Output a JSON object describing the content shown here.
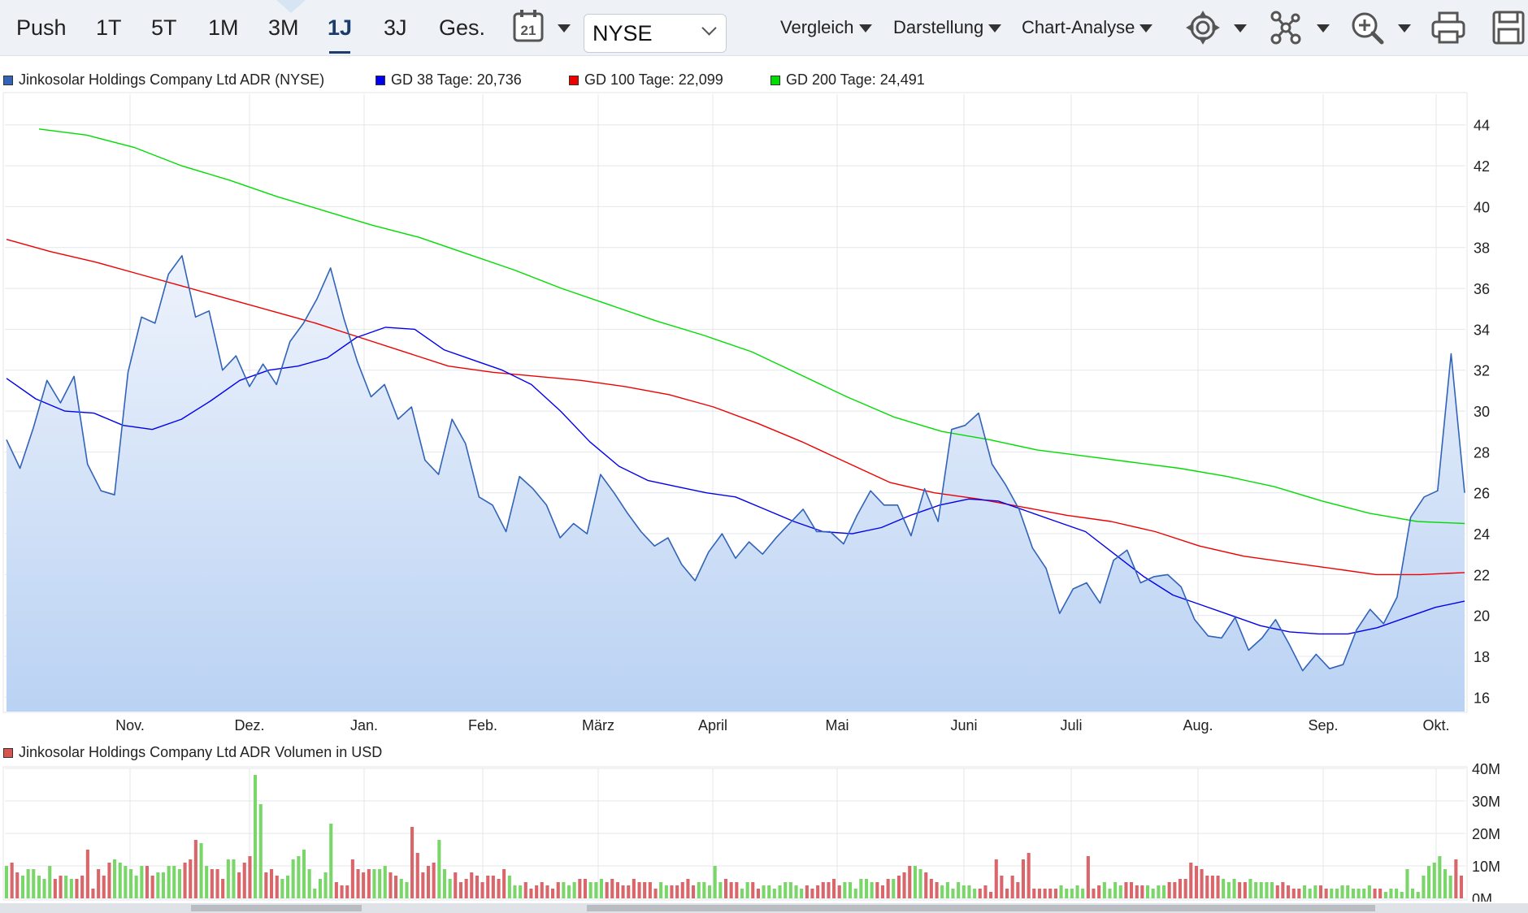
{
  "toolbar": {
    "timeframes": [
      "Push",
      "1T",
      "5T",
      "1M",
      "3M",
      "1J",
      "3J",
      "Ges."
    ],
    "active_timeframe": "1J",
    "calendar_day": "21",
    "exchange": "NYSE",
    "menus": [
      "Vergleich",
      "Darstellung",
      "Chart-Analyse"
    ],
    "icons": [
      "settings-icon",
      "network-icon",
      "zoom-icon",
      "print-icon",
      "save-icon"
    ]
  },
  "legend_price": [
    {
      "label": "Jinkosolar Holdings Company Ltd ADR (NYSE)",
      "color": "#3163b8"
    },
    {
      "label": "GD 38 Tage: 20,736",
      "color": "#0000ee"
    },
    {
      "label": "GD 100 Tage: 22,099",
      "color": "#ee0000"
    },
    {
      "label": "GD 200 Tage: 24,491",
      "color": "#00dd00"
    }
  ],
  "legend_volume": {
    "label": "Jinkosolar Holdings Company Ltd ADR Volumen in USD",
    "color": "#d9534f"
  },
  "chart_data": [
    {
      "type": "line",
      "title": "",
      "x_axis_labels": [
        "Nov.",
        "Dez.",
        "Jan.",
        "Feb.",
        "März",
        "April",
        "Mai",
        "Juni",
        "Juli",
        "Aug.",
        "Sep.",
        "Okt."
      ],
      "y_ticks": [
        16,
        18,
        20,
        22,
        24,
        26,
        28,
        30,
        32,
        34,
        36,
        38,
        40,
        42,
        44
      ],
      "ylim": [
        15.3,
        45.5
      ],
      "grid": true,
      "series": [
        {
          "name": "Jinkosolar Holdings Company Ltd ADR (NYSE)",
          "color": "#3163b8",
          "style": "area",
          "values": [
            28.6,
            27.2,
            29.2,
            31.5,
            30.4,
            31.7,
            27.4,
            26.1,
            25.9,
            31.9,
            34.6,
            34.3,
            36.7,
            37.6,
            34.6,
            34.9,
            32.0,
            32.7,
            31.2,
            32.3,
            31.3,
            33.4,
            34.3,
            35.5,
            37.0,
            34.5,
            32.4,
            30.7,
            31.3,
            29.6,
            30.2,
            27.6,
            26.9,
            29.6,
            28.4,
            25.8,
            25.4,
            24.1,
            26.8,
            26.2,
            25.4,
            23.8,
            24.5,
            24.0,
            26.9,
            26.0,
            25.0,
            24.1,
            23.4,
            23.8,
            22.5,
            21.7,
            23.1,
            24.0,
            22.8,
            23.6,
            23.0,
            23.8,
            24.5,
            25.2,
            24.1,
            24.1,
            23.5,
            24.9,
            26.1,
            25.4,
            25.4,
            23.9,
            26.2,
            24.6,
            29.1,
            29.3,
            29.9,
            27.4,
            26.4,
            25.2,
            23.3,
            22.3,
            20.1,
            21.3,
            21.6,
            20.6,
            22.7,
            23.2,
            21.6,
            21.9,
            22.0,
            21.4,
            19.8,
            19.0,
            18.9,
            19.9,
            18.3,
            18.9,
            19.8,
            18.6,
            17.3,
            18.1,
            17.4,
            17.6,
            19.3,
            20.3,
            19.6,
            20.9,
            24.8,
            25.8,
            26.1,
            32.8,
            26.0
          ]
        },
        {
          "name": "GD 38 Tage: 20,736",
          "color": "#0000ee",
          "style": "line",
          "values": [
            31.6,
            30.6,
            30.0,
            29.9,
            29.3,
            29.1,
            29.6,
            30.5,
            31.5,
            32.0,
            32.2,
            32.6,
            33.6,
            34.1,
            34.0,
            33.0,
            32.5,
            32.0,
            31.3,
            30.0,
            28.5,
            27.3,
            26.6,
            26.3,
            26.0,
            25.8,
            25.2,
            24.6,
            24.1,
            24.0,
            24.3,
            24.9,
            25.4,
            25.7,
            25.6,
            25.1,
            24.6,
            24.1,
            23.0,
            21.9,
            21.0,
            20.5,
            20.0,
            19.5,
            19.2,
            19.1,
            19.1,
            19.4,
            19.9,
            20.4,
            20.7
          ]
        },
        {
          "name": "GD 100 Tage: 22,099",
          "color": "#ee0000",
          "style": "line",
          "values": [
            38.4,
            37.8,
            37.3,
            36.7,
            36.1,
            35.5,
            34.9,
            34.3,
            33.6,
            32.9,
            32.2,
            31.9,
            31.7,
            31.5,
            31.2,
            30.8,
            30.2,
            29.4,
            28.5,
            27.5,
            26.5,
            26.0,
            25.7,
            25.3,
            24.9,
            24.6,
            24.1,
            23.4,
            22.9,
            22.6,
            22.3,
            22.0,
            22.0,
            22.1
          ]
        },
        {
          "name": "GD 200 Tage: 24,491",
          "color": "#00dd00",
          "style": "line",
          "values": [
            43.8,
            43.5,
            42.9,
            42.0,
            41.3,
            40.5,
            39.8,
            39.1,
            38.5,
            37.7,
            36.9,
            36.0,
            35.2,
            34.4,
            33.7,
            32.9,
            31.8,
            30.7,
            29.7,
            29.0,
            28.6,
            28.1,
            27.8,
            27.5,
            27.2,
            26.8,
            26.3,
            25.6,
            25.0,
            24.6,
            24.5
          ]
        }
      ]
    },
    {
      "type": "bar",
      "title": "",
      "y_ticks": [
        "0M",
        "10M",
        "20M",
        "30M",
        "40M"
      ],
      "ylim": [
        0,
        40
      ],
      "unit": "M USD",
      "grid": true,
      "series": [
        {
          "name": "Jinkosolar Holdings Company Ltd ADR Volumen in USD",
          "colors": {
            "up": "#7bd66a",
            "down": "#d9666a"
          },
          "values": [
            10,
            11,
            8,
            7,
            9,
            9,
            7,
            6,
            10,
            6,
            7,
            7,
            6,
            6,
            7,
            15,
            3,
            9,
            7,
            11,
            12,
            11,
            10,
            9,
            7,
            10,
            10,
            7,
            8,
            8,
            10,
            10,
            9,
            11,
            12,
            18,
            17,
            10,
            9,
            9,
            6,
            12,
            12,
            8,
            11,
            13,
            38,
            29,
            8,
            9,
            7,
            6,
            7,
            12,
            13,
            15,
            9,
            3,
            6,
            8,
            23,
            5,
            4,
            4,
            12,
            9,
            8,
            9,
            9,
            9,
            10,
            8,
            7,
            6,
            5,
            22,
            14,
            8,
            10,
            11,
            18,
            9,
            6,
            8,
            5,
            6,
            8,
            7,
            5,
            7,
            7,
            6,
            9,
            7,
            4,
            4,
            5,
            3,
            4,
            5,
            4,
            3,
            5,
            5,
            4,
            5,
            6,
            6,
            5,
            5,
            6,
            5,
            6,
            5,
            4,
            4,
            6,
            5,
            5,
            5,
            3,
            5,
            4,
            4,
            4,
            5,
            6,
            4,
            5,
            5,
            4,
            10,
            5,
            6,
            5,
            5,
            3,
            5,
            5,
            3,
            4,
            4,
            3,
            4,
            5,
            5,
            4,
            3,
            4,
            3,
            4,
            5,
            5,
            6,
            4,
            5,
            5,
            3,
            6,
            6,
            5,
            5,
            4,
            6,
            6,
            7,
            8,
            10,
            10,
            9,
            8,
            6,
            5,
            4,
            5,
            3,
            5,
            4,
            4,
            3,
            3,
            4,
            2,
            12,
            7,
            3,
            7,
            5,
            12,
            14,
            3,
            3,
            3,
            3,
            3,
            4,
            3,
            3,
            4,
            3,
            13,
            3,
            4,
            5,
            3,
            5,
            4,
            5,
            5,
            4,
            4,
            4,
            3,
            4,
            4,
            5,
            5,
            6,
            6,
            11,
            10,
            9,
            7,
            7,
            7,
            6,
            5,
            6,
            5,
            5,
            6,
            5,
            5,
            5,
            5,
            4,
            5,
            4,
            3,
            3,
            4,
            3,
            4,
            4,
            3,
            3,
            3,
            4,
            4,
            3,
            3,
            3,
            4,
            3,
            3,
            2,
            3,
            3,
            2,
            9,
            3,
            2,
            7,
            10,
            11,
            13,
            9,
            7,
            12,
            7
          ]
        }
      ]
    }
  ]
}
